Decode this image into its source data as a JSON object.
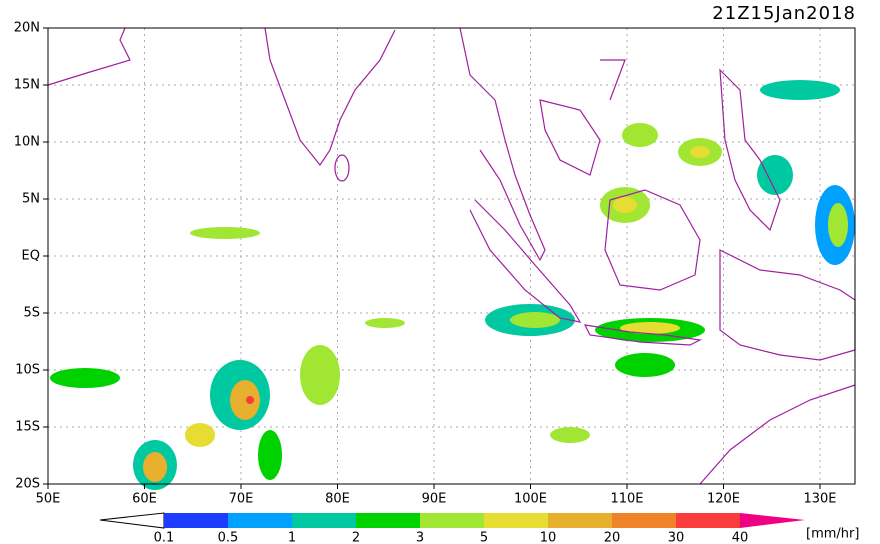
{
  "header": {
    "title": "21Z15Jan2018"
  },
  "map": {
    "lat_labels": [
      "20N",
      "15N",
      "10N",
      "5N",
      "EQ",
      "5S",
      "10S",
      "15S",
      "20S"
    ],
    "lon_labels": [
      "50E",
      "60E",
      "70E",
      "80E",
      "90E",
      "100E",
      "110E",
      "120E",
      "130E"
    ]
  },
  "colorbar": {
    "labels": [
      "0.1",
      "0.5",
      "1",
      "2",
      "3",
      "5",
      "10",
      "20",
      "30",
      "40"
    ],
    "unit": "[mm/hr]"
  }
}
